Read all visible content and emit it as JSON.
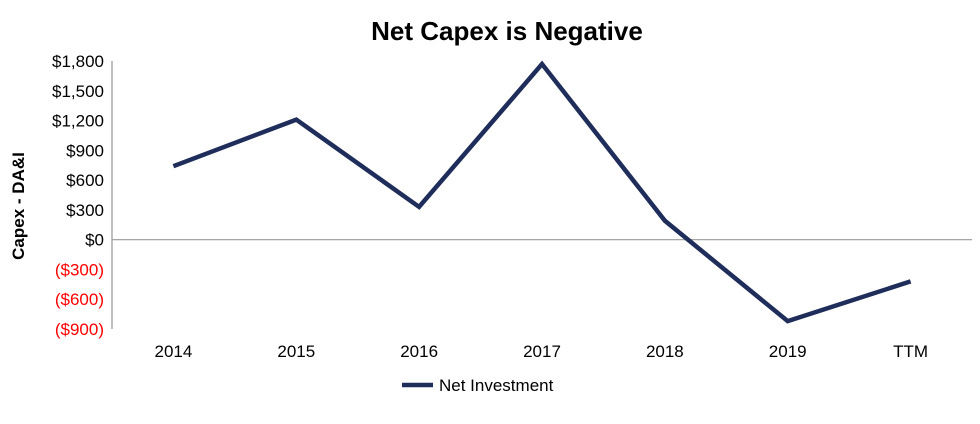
{
  "chart_data": {
    "type": "line",
    "title": "Net Capex is Negative",
    "xlabel": "",
    "ylabel": "Capex - DA&I",
    "categories": [
      "2014",
      "2015",
      "2016",
      "2017",
      "2018",
      "2019",
      "TTM"
    ],
    "series": [
      {
        "name": "Net Investment",
        "color": "#1f2d5a",
        "values": [
          740,
          1210,
          330,
          1770,
          190,
          -820,
          -420
        ]
      }
    ],
    "ylim": [
      -900,
      1800
    ],
    "yticks": [
      1800,
      1500,
      1200,
      900,
      600,
      300,
      0,
      -300,
      -600,
      -900
    ],
    "ytick_labels": [
      "$1,800",
      "$1,500",
      "$1,200",
      "$900",
      "$600",
      "$300",
      "$0",
      "($300)",
      "($600)",
      "($900)"
    ],
    "negative_label_color": "#ff0000",
    "positive_label_color": "#000000",
    "grid": false,
    "legend_position": "bottom"
  }
}
